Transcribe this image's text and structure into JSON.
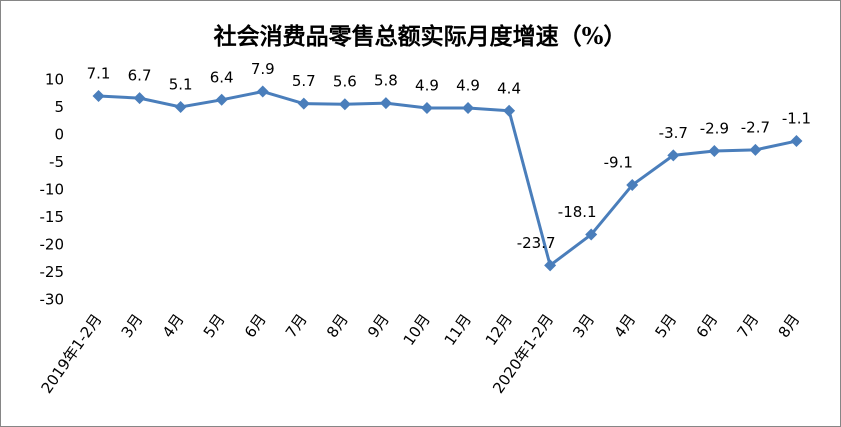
{
  "chart_data": {
    "type": "line",
    "title": "社会消费品零售总额实际月度增速（%）",
    "categories": [
      "2019年1-2月",
      "3月",
      "4月",
      "5月",
      "6月",
      "7月",
      "8月",
      "9月",
      "10月",
      "11月",
      "12月",
      "2020年1-2月",
      "3月",
      "4月",
      "5月",
      "6月",
      "7月",
      "8月"
    ],
    "values": [
      7.1,
      6.7,
      5.1,
      6.4,
      7.9,
      5.7,
      5.6,
      5.8,
      4.9,
      4.9,
      4.4,
      -23.7,
      -18.1,
      -9.1,
      -3.7,
      -2.9,
      -2.7,
      -1.1
    ],
    "color": "#4a7ebb",
    "ylim": [
      -30,
      10
    ],
    "yticks": [
      -30,
      -25,
      -20,
      -15,
      -10,
      -5,
      0,
      5,
      10
    ],
    "grid": false
  }
}
